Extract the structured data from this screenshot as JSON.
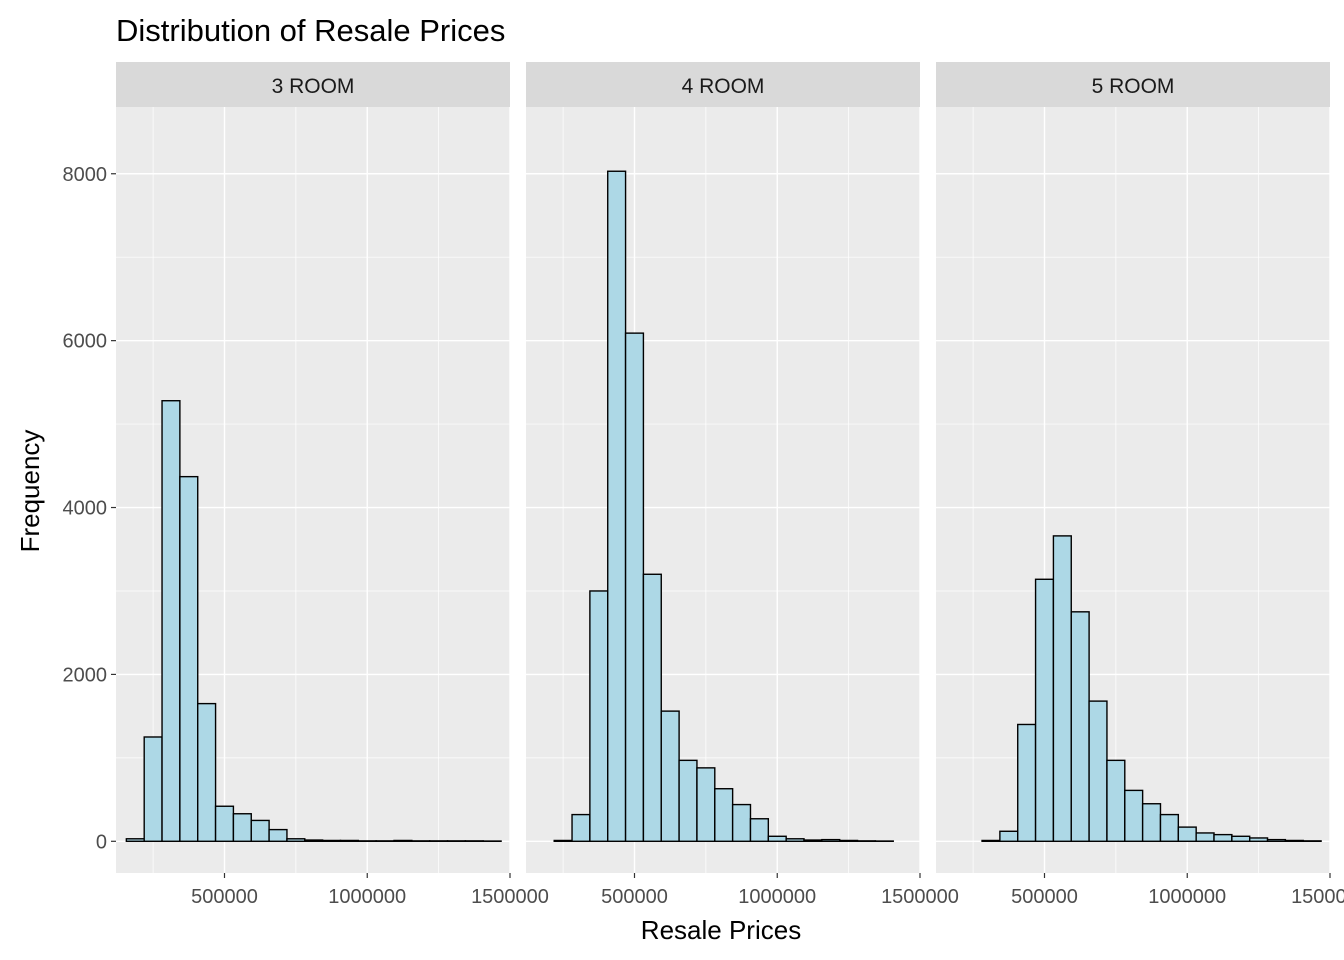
{
  "colors": {
    "panel_bg": "#ebebeb",
    "grid": "#ffffff",
    "strip_bg": "#d9d9d9",
    "bar_fill": "#add8e6",
    "bar_stroke": "#000000",
    "tick": "#333333"
  },
  "chart_data": {
    "type": "bar",
    "title": "Distribution of Resale Prices",
    "xlabel": "Resale Prices",
    "ylabel": "Frequency",
    "xlim": [
      120000,
      1500000
    ],
    "ylim": [
      -380,
      8800
    ],
    "x_ticks": [
      500000,
      1000000,
      1500000
    ],
    "x_tick_labels": [
      "500000",
      "1000000",
      "1500000"
    ],
    "y_ticks": [
      0,
      2000,
      4000,
      6000,
      8000
    ],
    "y_tick_labels": [
      "0",
      "2000",
      "4000",
      "6000",
      "8000"
    ],
    "bin_width": 62500,
    "bin_starts": [
      156250,
      218750,
      281250,
      343750,
      406250,
      468750,
      531250,
      593750,
      656250,
      718750,
      781250,
      843750,
      906250,
      968750,
      1031250,
      1093750,
      1156250,
      1218750,
      1281250,
      1343750,
      1406250
    ],
    "grid": true,
    "legend": "none",
    "facets": [
      {
        "label": "3 ROOM",
        "counts": [
          30,
          1250,
          5280,
          4370,
          1650,
          420,
          330,
          250,
          140,
          30,
          15,
          10,
          10,
          5,
          5,
          10,
          5,
          5,
          5,
          5,
          3
        ]
      },
      {
        "label": "4 ROOM",
        "counts": [
          0,
          10,
          320,
          3000,
          8030,
          6090,
          3200,
          1560,
          970,
          880,
          630,
          440,
          270,
          60,
          30,
          15,
          20,
          10,
          5,
          3,
          0
        ]
      },
      {
        "label": "5 ROOM",
        "counts": [
          0,
          0,
          10,
          120,
          1400,
          3140,
          3660,
          2750,
          1680,
          970,
          610,
          450,
          320,
          170,
          100,
          80,
          60,
          40,
          20,
          10,
          5
        ]
      }
    ]
  }
}
